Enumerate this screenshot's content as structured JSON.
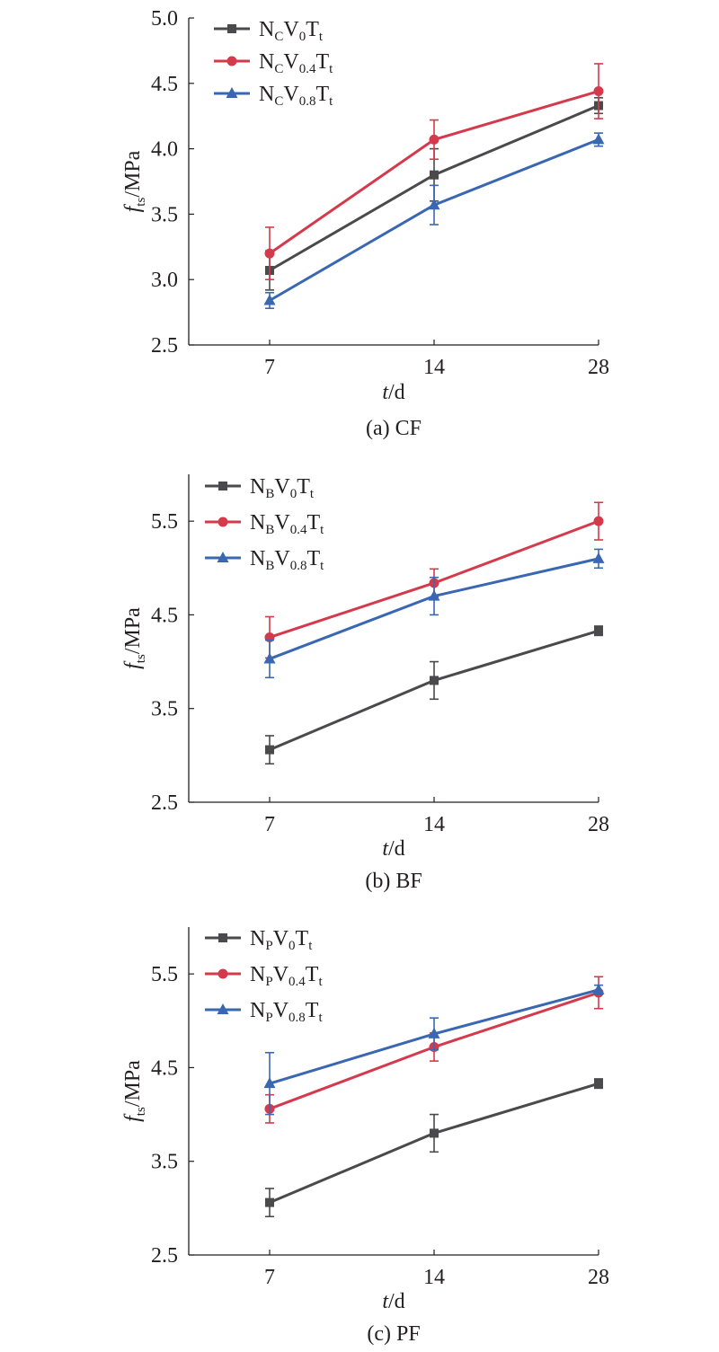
{
  "chart_data": [
    {
      "type": "line",
      "caption": "(a) CF",
      "xlabel": {
        "main": "t",
        "suffix": "/d"
      },
      "ylabel": {
        "main": "f",
        "sub": "ts",
        "suffix": "/MPa"
      },
      "categories": [
        "7",
        "14",
        "28"
      ],
      "ylim": [
        2.5,
        5.0
      ],
      "yticks": [
        "2.5",
        "3.0",
        "3.5",
        "4.0",
        "4.5",
        "5.0"
      ],
      "series": [
        {
          "name": "NCV0Tt",
          "label": [
            [
              "N",
              ""
            ],
            [
              "C",
              "sub"
            ],
            [
              "V",
              ""
            ],
            [
              "0",
              "sub"
            ],
            [
              "T",
              ""
            ],
            [
              "t",
              "sub"
            ]
          ],
          "color": "#4a4a4c",
          "marker": "square",
          "values": [
            3.07,
            3.8,
            4.33
          ],
          "errors": [
            0.15,
            0.2,
            0.06
          ]
        },
        {
          "name": "NCV0.4Tt",
          "label": [
            [
              "N",
              ""
            ],
            [
              "C",
              "sub"
            ],
            [
              "V",
              ""
            ],
            [
              "0.4",
              "sub"
            ],
            [
              "T",
              ""
            ],
            [
              "t",
              "sub"
            ]
          ],
          "color": "#d43a4c",
          "marker": "circle",
          "values": [
            3.2,
            4.07,
            4.44
          ],
          "errors": [
            0.2,
            0.15,
            0.21
          ]
        },
        {
          "name": "NCV0.8Tt",
          "label": [
            [
              "N",
              ""
            ],
            [
              "C",
              "sub"
            ],
            [
              "V",
              ""
            ],
            [
              "0.8",
              "sub"
            ],
            [
              "T",
              ""
            ],
            [
              "t",
              "sub"
            ]
          ],
          "color": "#3a67b1",
          "marker": "triangle",
          "values": [
            2.84,
            3.57,
            4.07
          ],
          "errors": [
            0.06,
            0.15,
            0.05
          ]
        }
      ]
    },
    {
      "type": "line",
      "caption": "(b) BF",
      "xlabel": {
        "main": "t",
        "suffix": "/d"
      },
      "ylabel": {
        "main": "f",
        "sub": "ts",
        "suffix": "/MPa"
      },
      "categories": [
        "7",
        "14",
        "28"
      ],
      "ylim": [
        2.5,
        6.0
      ],
      "yticks": [
        "2.5",
        "3.5",
        "4.5",
        "5.5"
      ],
      "series": [
        {
          "name": "NBV0Tt",
          "label": [
            [
              "N",
              ""
            ],
            [
              "B",
              "sub"
            ],
            [
              "V",
              ""
            ],
            [
              "0",
              "sub"
            ],
            [
              "T",
              ""
            ],
            [
              "t",
              "sub"
            ]
          ],
          "color": "#4a4a4c",
          "marker": "square",
          "values": [
            3.06,
            3.8,
            4.33
          ],
          "errors": [
            0.15,
            0.2,
            0.05
          ]
        },
        {
          "name": "NBV0.4Tt",
          "label": [
            [
              "N",
              ""
            ],
            [
              "B",
              "sub"
            ],
            [
              "V",
              ""
            ],
            [
              "0.4",
              "sub"
            ],
            [
              "T",
              ""
            ],
            [
              "t",
              "sub"
            ]
          ],
          "color": "#d43a4c",
          "marker": "circle",
          "values": [
            4.26,
            4.84,
            5.5
          ],
          "errors": [
            0.22,
            0.15,
            0.2
          ]
        },
        {
          "name": "NBV0.8Tt",
          "label": [
            [
              "N",
              ""
            ],
            [
              "B",
              "sub"
            ],
            [
              "V",
              ""
            ],
            [
              "0.8",
              "sub"
            ],
            [
              "T",
              ""
            ],
            [
              "t",
              "sub"
            ]
          ],
          "color": "#3a67b1",
          "marker": "triangle",
          "values": [
            4.03,
            4.7,
            5.1
          ],
          "errors": [
            0.2,
            0.2,
            0.1
          ]
        }
      ]
    },
    {
      "type": "line",
      "caption": "(c) PF",
      "xlabel": {
        "main": "t",
        "suffix": "/d"
      },
      "ylabel": {
        "main": "f",
        "sub": "ts",
        "suffix": "/MPa"
      },
      "categories": [
        "7",
        "14",
        "28"
      ],
      "ylim": [
        2.5,
        6.0
      ],
      "yticks": [
        "2.5",
        "3.5",
        "4.5",
        "5.5"
      ],
      "series": [
        {
          "name": "NPV0Tt",
          "label": [
            [
              "N",
              ""
            ],
            [
              "P",
              "sub"
            ],
            [
              "V",
              ""
            ],
            [
              "0",
              "sub"
            ],
            [
              "T",
              ""
            ],
            [
              "t",
              "sub"
            ]
          ],
          "color": "#4a4a4c",
          "marker": "square",
          "values": [
            3.06,
            3.8,
            4.33
          ],
          "errors": [
            0.15,
            0.2,
            0.05
          ]
        },
        {
          "name": "NPV0.4Tt",
          "label": [
            [
              "N",
              ""
            ],
            [
              "P",
              "sub"
            ],
            [
              "V",
              ""
            ],
            [
              "0.4",
              "sub"
            ],
            [
              "T",
              ""
            ],
            [
              "t",
              "sub"
            ]
          ],
          "color": "#d43a4c",
          "marker": "circle",
          "values": [
            4.06,
            4.72,
            5.3
          ],
          "errors": [
            0.15,
            0.15,
            0.17
          ]
        },
        {
          "name": "NPV0.8Tt",
          "label": [
            [
              "N",
              ""
            ],
            [
              "P",
              "sub"
            ],
            [
              "V",
              ""
            ],
            [
              "0.8",
              "sub"
            ],
            [
              "T",
              ""
            ],
            [
              "t",
              "sub"
            ]
          ],
          "color": "#3a67b1",
          "marker": "triangle",
          "values": [
            4.33,
            4.86,
            5.33
          ],
          "errors": [
            0.33,
            0.17,
            0.05
          ]
        }
      ]
    }
  ]
}
